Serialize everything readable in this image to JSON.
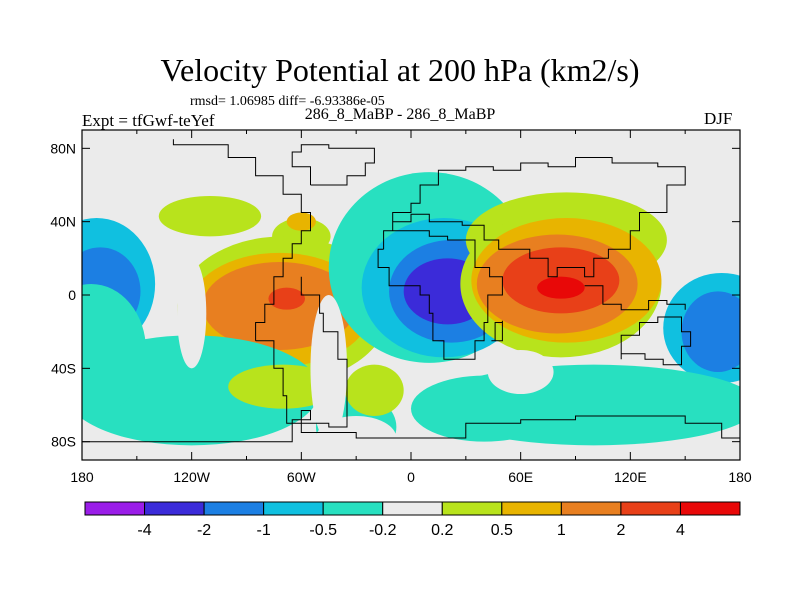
{
  "title": "Velocity Potential at 200 hPa (km2/s)",
  "stats": "rmsd= 1.06985 diff= -6.93386e-05",
  "left_label": "Expt = tfGwf-teYef",
  "center_label": "286_8_MaBP - 286_8_MaBP",
  "right_label": "DJF",
  "chart_data": {
    "type": "contour-map",
    "title": "Velocity Potential at 200 hPa (km2/s)",
    "x_axis": {
      "range": [
        -180,
        180
      ],
      "ticks": [
        -180,
        -120,
        -60,
        0,
        60,
        120,
        180
      ],
      "tick_labels": [
        "180",
        "120W",
        "60W",
        "0",
        "60E",
        "120E",
        "180"
      ]
    },
    "y_axis": {
      "range": [
        -90,
        90
      ],
      "ticks": [
        80,
        40,
        0,
        -40,
        -80
      ],
      "tick_labels": [
        "80N",
        "40N",
        "0",
        "40S",
        "80S"
      ]
    },
    "colorbar": {
      "labels": [
        "-4",
        "-2",
        "-1",
        "-0.5",
        "-0.2",
        "0.2",
        "0.5",
        "1",
        "2",
        "4"
      ],
      "colors": [
        "#9a1de8",
        "#3b2bd9",
        "#1c7fe3",
        "#10c0e0",
        "#28e0c0",
        "#ebebeb",
        "#b8e31c",
        "#e8b400",
        "#e87f20",
        "#e84018",
        "#e80808"
      ]
    },
    "features": [
      {
        "name": "positive-max-east",
        "lon": 82,
        "lat": 4,
        "value": 4.2
      },
      {
        "name": "negative-min-atlantic",
        "lon": 20,
        "lat": 2,
        "value": -2.3
      },
      {
        "name": "positive-max-pacific",
        "lon": -65,
        "lat": -2,
        "value": 2.2
      },
      {
        "name": "negative-west-pacific",
        "lon": -170,
        "lat": 0,
        "value": -1.1
      },
      {
        "name": "negative-east-indian",
        "lon": 165,
        "lat": -20,
        "value": -1.1
      }
    ]
  }
}
